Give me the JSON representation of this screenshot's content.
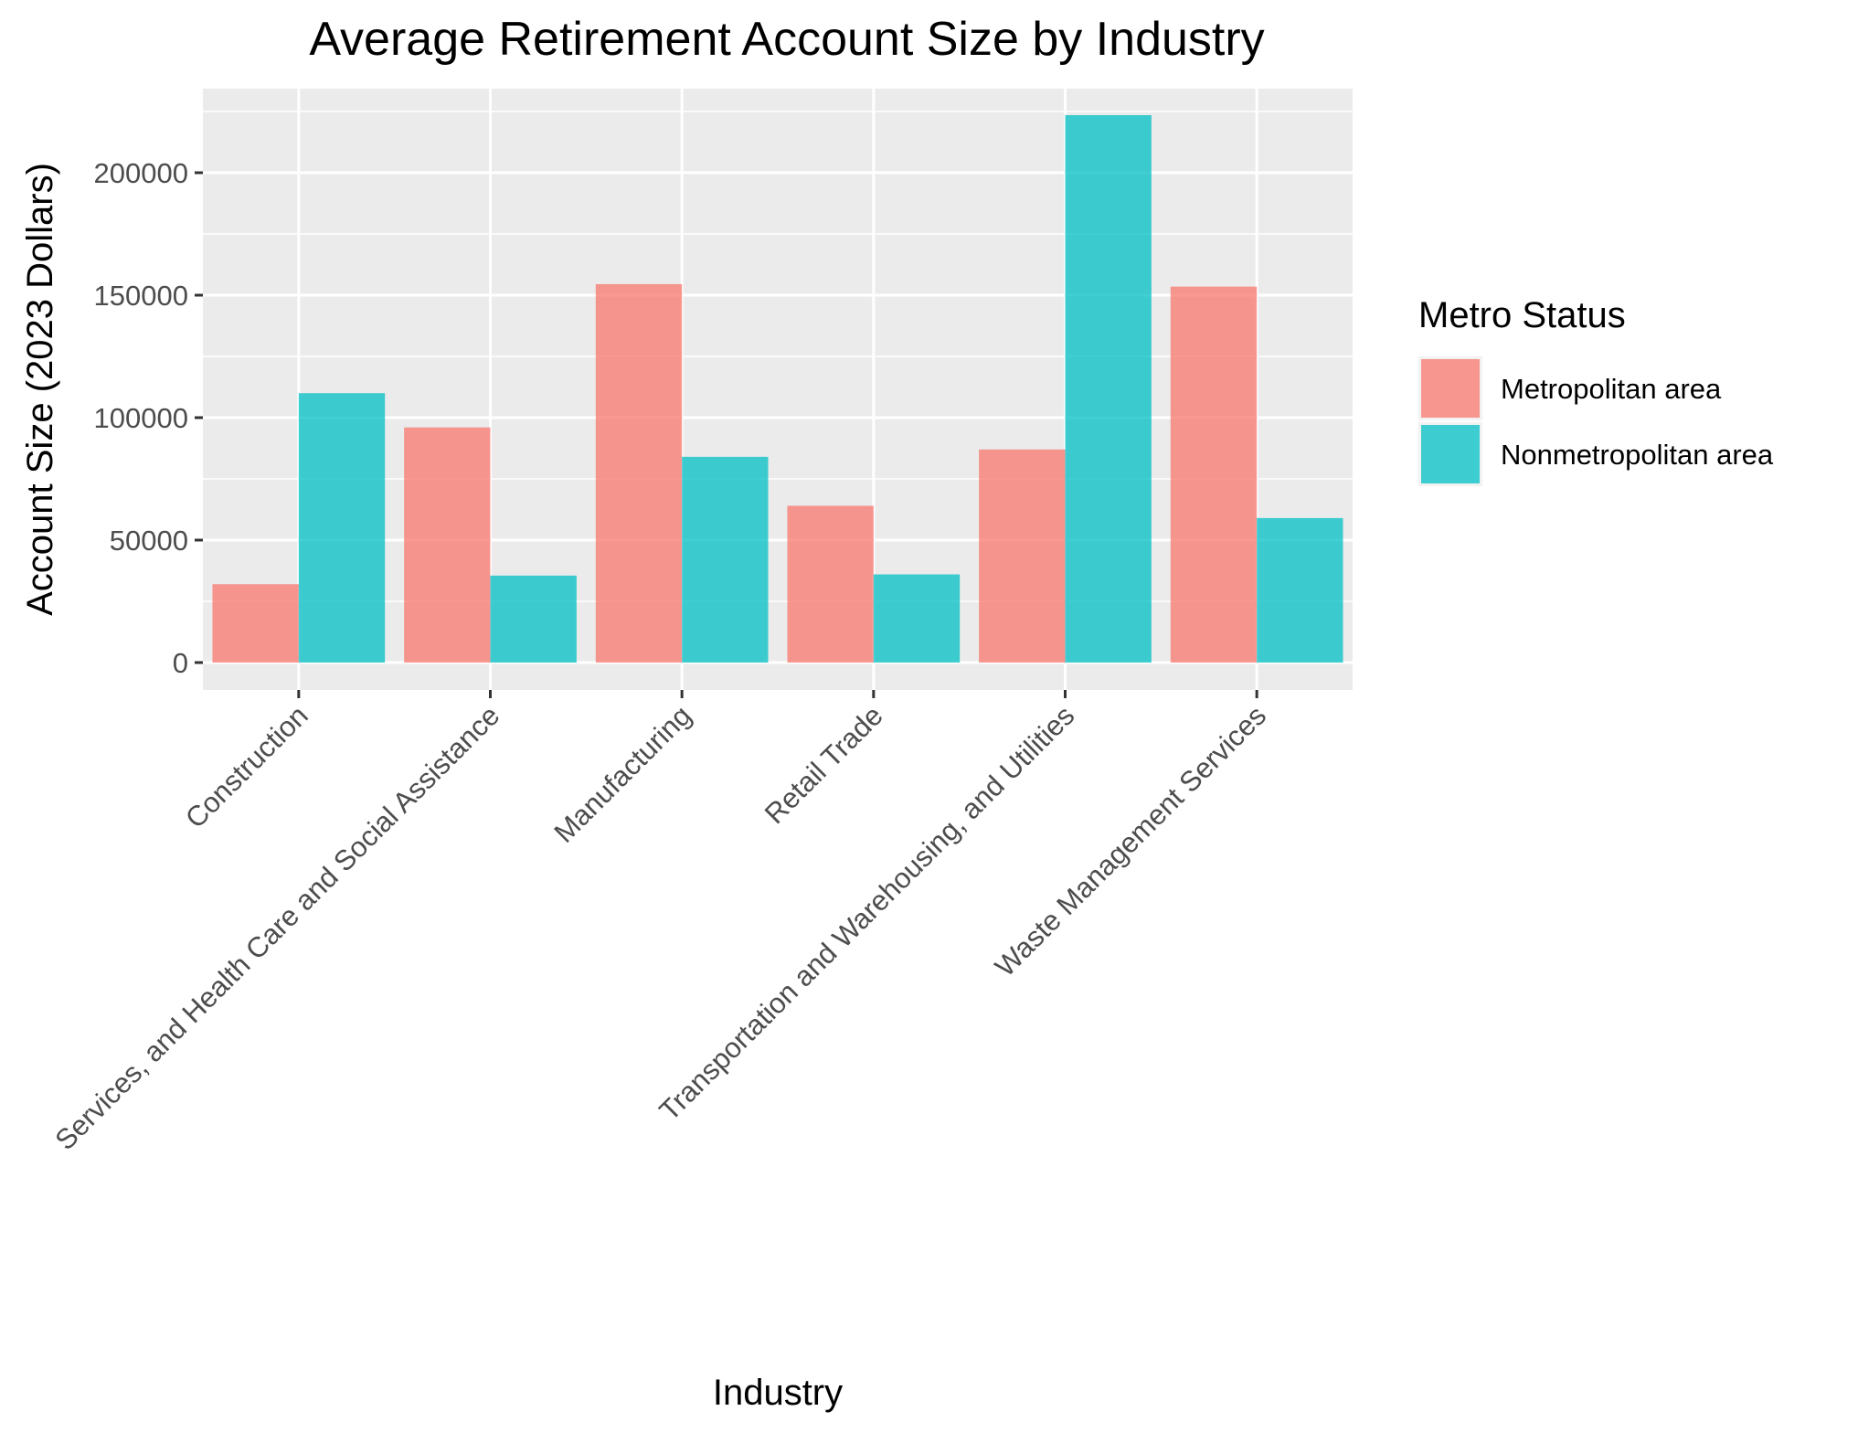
{
  "chart_data": {
    "type": "bar",
    "title": "Average Retirement Account Size by Industry",
    "xlabel": "Industry",
    "ylabel": "Account Size (2023 Dollars)",
    "categories": [
      "Construction",
      "Services, and Health Care and Social Assistance",
      "Manufacturing",
      "Retail Trade",
      "Transportation and Warehousing, and Utilities",
      "Waste Management Services"
    ],
    "series": [
      {
        "name": "Metropolitan area",
        "color": "#F8766D",
        "values": [
          32000,
          96000,
          154500,
          64000,
          87000,
          153500
        ]
      },
      {
        "name": "Nonmetropolitan area",
        "color": "#00BFC4",
        "values": [
          110000,
          35500,
          84000,
          36000,
          223500,
          59000
        ]
      }
    ],
    "ylim": [
      -10000,
      235000
    ],
    "yticks": [
      0,
      50000,
      100000,
      150000,
      200000
    ],
    "ytick_labels": [
      "0",
      "50000",
      "100000",
      "150000",
      "200000"
    ],
    "legend": {
      "title": "Metro Status",
      "position": "right"
    },
    "grid": true
  }
}
